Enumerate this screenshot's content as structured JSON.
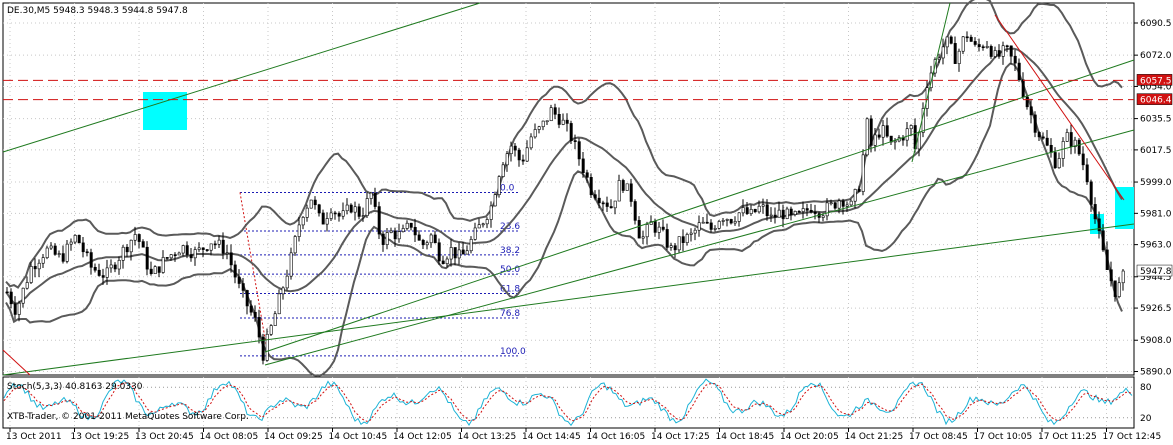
{
  "header": {
    "symbol_line": "DE.30,M5  5948.3 5948.3 5944.8 5947.8"
  },
  "indicator": {
    "label": "Stoch(5,3,3) 40.8163 29.0330",
    "levels": [
      "80",
      "20"
    ]
  },
  "copyright": "XTB-Trader, © 2001-2011 MetaQuotes Software Corp.",
  "colors": {
    "candle": "#000000",
    "bollinger": "#5a5a5a",
    "trendline": "#1f7a1f",
    "resistance": "#d11111",
    "fib": "#1c1cb4",
    "box": "#00ffff",
    "stoch_main": "#1cb3d6",
    "stoch_signal": "#d11111",
    "grid": "#c8c8c8"
  },
  "price_axis": {
    "ticks": [
      "6090.5",
      "6072.0",
      "6054.0",
      "6035.5",
      "6017.5",
      "5999.0",
      "5981.0",
      "5963.0",
      "5944.5",
      "5926.5",
      "5908.0",
      "5890.0"
    ]
  },
  "price_tags": {
    "resistance_1": "6057.5",
    "resistance_2": "6046.4",
    "current": "5947.8"
  },
  "fib_levels": [
    "0.0",
    "23.6",
    "38.2",
    "50.0",
    "61.8",
    "76.8",
    "100.0"
  ],
  "time_axis": {
    "ticks": [
      "13 Oct 2011",
      "13 Oct 19:25",
      "13 Oct 20:45",
      "14 Oct 08:05",
      "14 Oct 09:25",
      "14 Oct 10:45",
      "14 Oct 12:05",
      "14 Oct 13:25",
      "14 Oct 14:45",
      "14 Oct 16:05",
      "14 Oct 17:25",
      "14 Oct 18:45",
      "14 Oct 20:05",
      "14 Oct 21:25",
      "17 Oct 08:45",
      "17 Oct 10:05",
      "17 Oct 11:25",
      "17 Oct 12:45"
    ]
  },
  "chart_data": {
    "type": "candlestick",
    "title": "DE.30,M5",
    "ylim": [
      5888,
      6102
    ],
    "key_prices": {
      "resistance_1": 6057.5,
      "resistance_2": 6046.4,
      "last": 5947.8,
      "fib_0": 5993,
      "fib_100": 5899
    },
    "close_path": [
      [
        0,
        5943
      ],
      [
        15,
        5925
      ],
      [
        30,
        5950
      ],
      [
        45,
        5960
      ],
      [
        60,
        5955
      ],
      [
        75,
        5968
      ],
      [
        90,
        5950
      ],
      [
        105,
        5945
      ],
      [
        120,
        5958
      ],
      [
        135,
        5970
      ],
      [
        150,
        5945
      ],
      [
        165,
        5955
      ],
      [
        180,
        5962
      ],
      [
        195,
        5958
      ],
      [
        210,
        5965
      ],
      [
        225,
        5960
      ],
      [
        240,
        5935
      ],
      [
        255,
        5918
      ],
      [
        262,
        5900
      ],
      [
        270,
        5915
      ],
      [
        280,
        5935
      ],
      [
        290,
        5955
      ],
      [
        300,
        5980
      ],
      [
        310,
        5990
      ],
      [
        320,
        5975
      ],
      [
        330,
        5985
      ],
      [
        340,
        5978
      ],
      [
        350,
        5985
      ],
      [
        360,
        5980
      ],
      [
        370,
        5992
      ],
      [
        380,
        5965
      ],
      [
        390,
        5970
      ],
      [
        400,
        5968
      ],
      [
        410,
        5975
      ],
      [
        420,
        5962
      ],
      [
        430,
        5968
      ],
      [
        440,
        5955
      ],
      [
        450,
        5960
      ],
      [
        460,
        5955
      ],
      [
        470,
        5965
      ],
      [
        480,
        5975
      ],
      [
        490,
        5985
      ],
      [
        500,
        6010
      ],
      [
        510,
        6020
      ],
      [
        520,
        6010
      ],
      [
        530,
        6025
      ],
      [
        540,
        6030
      ],
      [
        550,
        6040
      ],
      [
        560,
        6035
      ],
      [
        570,
        6025
      ],
      [
        580,
        6010
      ],
      [
        590,
        5995
      ],
      [
        600,
        5990
      ],
      [
        610,
        5985
      ],
      [
        620,
        6000
      ],
      [
        630,
        5990
      ],
      [
        640,
        5965
      ],
      [
        650,
        5975
      ],
      [
        660,
        5970
      ],
      [
        670,
        5960
      ],
      [
        680,
        5965
      ],
      [
        690,
        5968
      ],
      [
        700,
        5975
      ],
      [
        710,
        5972
      ],
      [
        720,
        5980
      ],
      [
        730,
        5978
      ],
      [
        740,
        5982
      ],
      [
        750,
        5980
      ],
      [
        760,
        5985
      ],
      [
        770,
        5978
      ],
      [
        780,
        5982
      ],
      [
        790,
        5978
      ],
      [
        800,
        5980
      ],
      [
        810,
        5985
      ],
      [
        820,
        5982
      ],
      [
        830,
        5985
      ],
      [
        840,
        5990
      ],
      [
        850,
        5985
      ],
      [
        860,
        6000
      ],
      [
        865,
        6035
      ],
      [
        870,
        6020
      ],
      [
        880,
        6030
      ],
      [
        890,
        6020
      ],
      [
        900,
        6025
      ],
      [
        910,
        6030
      ],
      [
        915,
        6015
      ],
      [
        925,
        6055
      ],
      [
        935,
        6070
      ],
      [
        945,
        6080
      ],
      [
        955,
        6070
      ],
      [
        965,
        6085
      ],
      [
        975,
        6075
      ],
      [
        985,
        6080
      ],
      [
        995,
        6070
      ],
      [
        1005,
        6075
      ],
      [
        1015,
        6065
      ],
      [
        1025,
        6045
      ],
      [
        1035,
        6030
      ],
      [
        1045,
        6020
      ],
      [
        1055,
        6010
      ],
      [
        1065,
        6025
      ],
      [
        1075,
        6020
      ],
      [
        1085,
        6005
      ],
      [
        1095,
        5975
      ],
      [
        1105,
        5950
      ],
      [
        1115,
        5935
      ],
      [
        1125,
        5948
      ]
    ]
  }
}
